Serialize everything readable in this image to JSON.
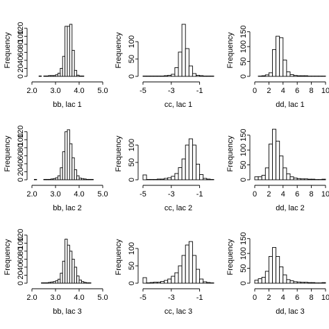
{
  "chart_data": [
    {
      "type": "bar",
      "subtype": "histogram",
      "xlabel": "bb, lac 1",
      "ylabel": "Frequency",
      "xlim": [
        2.0,
        5.0
      ],
      "ylim": [
        0,
        130
      ],
      "xticks": [
        "2.0",
        "3.0",
        "4.0",
        "5.0"
      ],
      "yticks": [
        0,
        20,
        40,
        60,
        80,
        100,
        120
      ],
      "bin_start": 2.0,
      "bin_width": 0.1,
      "values": [
        0,
        0,
        0,
        1,
        0,
        1,
        1,
        2,
        2,
        2,
        4,
        8,
        20,
        50,
        125,
        125,
        130,
        65,
        15,
        3,
        1,
        1,
        0,
        0,
        0,
        0,
        0,
        0,
        0,
        0
      ]
    },
    {
      "type": "bar",
      "subtype": "histogram",
      "xlabel": "cc, lac 1",
      "ylabel": "Frequency",
      "xlim": [
        -5,
        0
      ],
      "ylim": [
        0,
        150
      ],
      "xticks": [
        "-5",
        "-3",
        "-1"
      ],
      "xtick_values": [
        -5,
        -3,
        -1
      ],
      "yticks": [
        0,
        50,
        100
      ],
      "bin_start": -5.0,
      "bin_width": 0.25,
      "values": [
        1,
        1,
        1,
        1,
        1,
        1,
        2,
        3,
        6,
        25,
        70,
        150,
        80,
        30,
        8,
        3,
        2,
        1,
        1,
        1
      ]
    },
    {
      "type": "bar",
      "subtype": "histogram",
      "xlabel": "dd, lac 1",
      "ylabel": "Frequency",
      "xlim": [
        0,
        10
      ],
      "ylim": [
        0,
        175
      ],
      "xticks": [
        "0",
        "2",
        "4",
        "6",
        "8",
        "10"
      ],
      "xtick_values": [
        0,
        2,
        4,
        6,
        8,
        10
      ],
      "yticks": [
        0,
        50,
        100,
        150
      ],
      "bin_start": 0,
      "bin_width": 0.5,
      "values": [
        0,
        1,
        2,
        5,
        12,
        90,
        135,
        130,
        55,
        15,
        6,
        3,
        2,
        2,
        2,
        1,
        1,
        1,
        1,
        1
      ]
    },
    {
      "type": "bar",
      "subtype": "histogram",
      "xlabel": "bb, lac 2",
      "ylabel": "Frequency",
      "xlim": [
        2.0,
        5.0
      ],
      "ylim": [
        0,
        130
      ],
      "xticks": [
        "2.0",
        "3.0",
        "4.0",
        "5.0"
      ],
      "yticks": [
        0,
        20,
        40,
        60,
        80,
        100,
        120
      ],
      "bin_start": 2.0,
      "bin_width": 0.1,
      "values": [
        0,
        1,
        0,
        0,
        0,
        1,
        1,
        1,
        2,
        3,
        5,
        10,
        30,
        70,
        120,
        125,
        90,
        55,
        25,
        10,
        4,
        3,
        2,
        1,
        1,
        1,
        0,
        0,
        0,
        0
      ]
    },
    {
      "type": "bar",
      "subtype": "histogram",
      "xlabel": "cc, lac 2",
      "ylabel": "Frequency",
      "xlim": [
        -5,
        0
      ],
      "ylim": [
        0,
        150
      ],
      "xticks": [
        "-5",
        "-3",
        "-1"
      ],
      "xtick_values": [
        -5,
        -3,
        -1
      ],
      "yticks": [
        0,
        50,
        100
      ],
      "bin_start": -5.0,
      "bin_width": 0.25,
      "values": [
        14,
        1,
        1,
        1,
        2,
        2,
        4,
        6,
        10,
        18,
        35,
        60,
        100,
        118,
        100,
        45,
        15,
        4,
        2,
        1
      ]
    },
    {
      "type": "bar",
      "subtype": "histogram",
      "xlabel": "dd, lac 2",
      "ylabel": "Frequency",
      "xlim": [
        0,
        10
      ],
      "ylim": [
        0,
        175
      ],
      "xticks": [
        "0",
        "2",
        "4",
        "6",
        "8",
        "10"
      ],
      "xtick_values": [
        0,
        2,
        4,
        6,
        8,
        10
      ],
      "yticks": [
        0,
        50,
        100,
        150
      ],
      "bin_start": 0,
      "bin_width": 0.5,
      "values": [
        10,
        10,
        15,
        40,
        120,
        170,
        130,
        80,
        40,
        20,
        10,
        6,
        4,
        3,
        3,
        2,
        2,
        1,
        1,
        2
      ]
    },
    {
      "type": "bar",
      "subtype": "histogram",
      "xlabel": "bb, lac 3",
      "ylabel": "Frequency",
      "xlim": [
        2.0,
        5.0
      ],
      "ylim": [
        0,
        130
      ],
      "xticks": [
        "2.0",
        "3.0",
        "4.0",
        "5.0"
      ],
      "yticks": [
        0,
        20,
        40,
        60,
        80,
        100,
        120
      ],
      "bin_start": 2.0,
      "bin_width": 0.1,
      "values": [
        0,
        0,
        0,
        0,
        1,
        1,
        1,
        2,
        3,
        4,
        6,
        10,
        25,
        55,
        110,
        95,
        80,
        60,
        40,
        18,
        8,
        4,
        2,
        1,
        1,
        0,
        0,
        0,
        0,
        0
      ]
    },
    {
      "type": "bar",
      "subtype": "histogram",
      "xlabel": "cc, lac 3",
      "ylabel": "Frequency",
      "xlim": [
        -5,
        0
      ],
      "ylim": [
        0,
        150
      ],
      "xticks": [
        "-5",
        "-3",
        "-1"
      ],
      "xtick_values": [
        -5,
        -3,
        -1
      ],
      "yticks": [
        0,
        50,
        100
      ],
      "bin_start": -5.0,
      "bin_width": 0.25,
      "values": [
        16,
        1,
        2,
        3,
        3,
        5,
        8,
        12,
        20,
        30,
        50,
        80,
        110,
        120,
        80,
        40,
        12,
        4,
        2,
        1
      ]
    },
    {
      "type": "bar",
      "subtype": "histogram",
      "xlabel": "dd, lac 3",
      "ylabel": "Frequency",
      "xlim": [
        0,
        10
      ],
      "ylim": [
        0,
        175
      ],
      "xticks": [
        "0",
        "2",
        "4",
        "6",
        "8",
        "10"
      ],
      "xtick_values": [
        0,
        2,
        4,
        6,
        8,
        10
      ],
      "yticks": [
        0,
        50,
        100,
        150
      ],
      "bin_start": 0,
      "bin_width": 0.5,
      "values": [
        10,
        15,
        20,
        40,
        90,
        120,
        90,
        55,
        28,
        12,
        8,
        5,
        4,
        3,
        3,
        2,
        2,
        1,
        1,
        2
      ]
    }
  ]
}
